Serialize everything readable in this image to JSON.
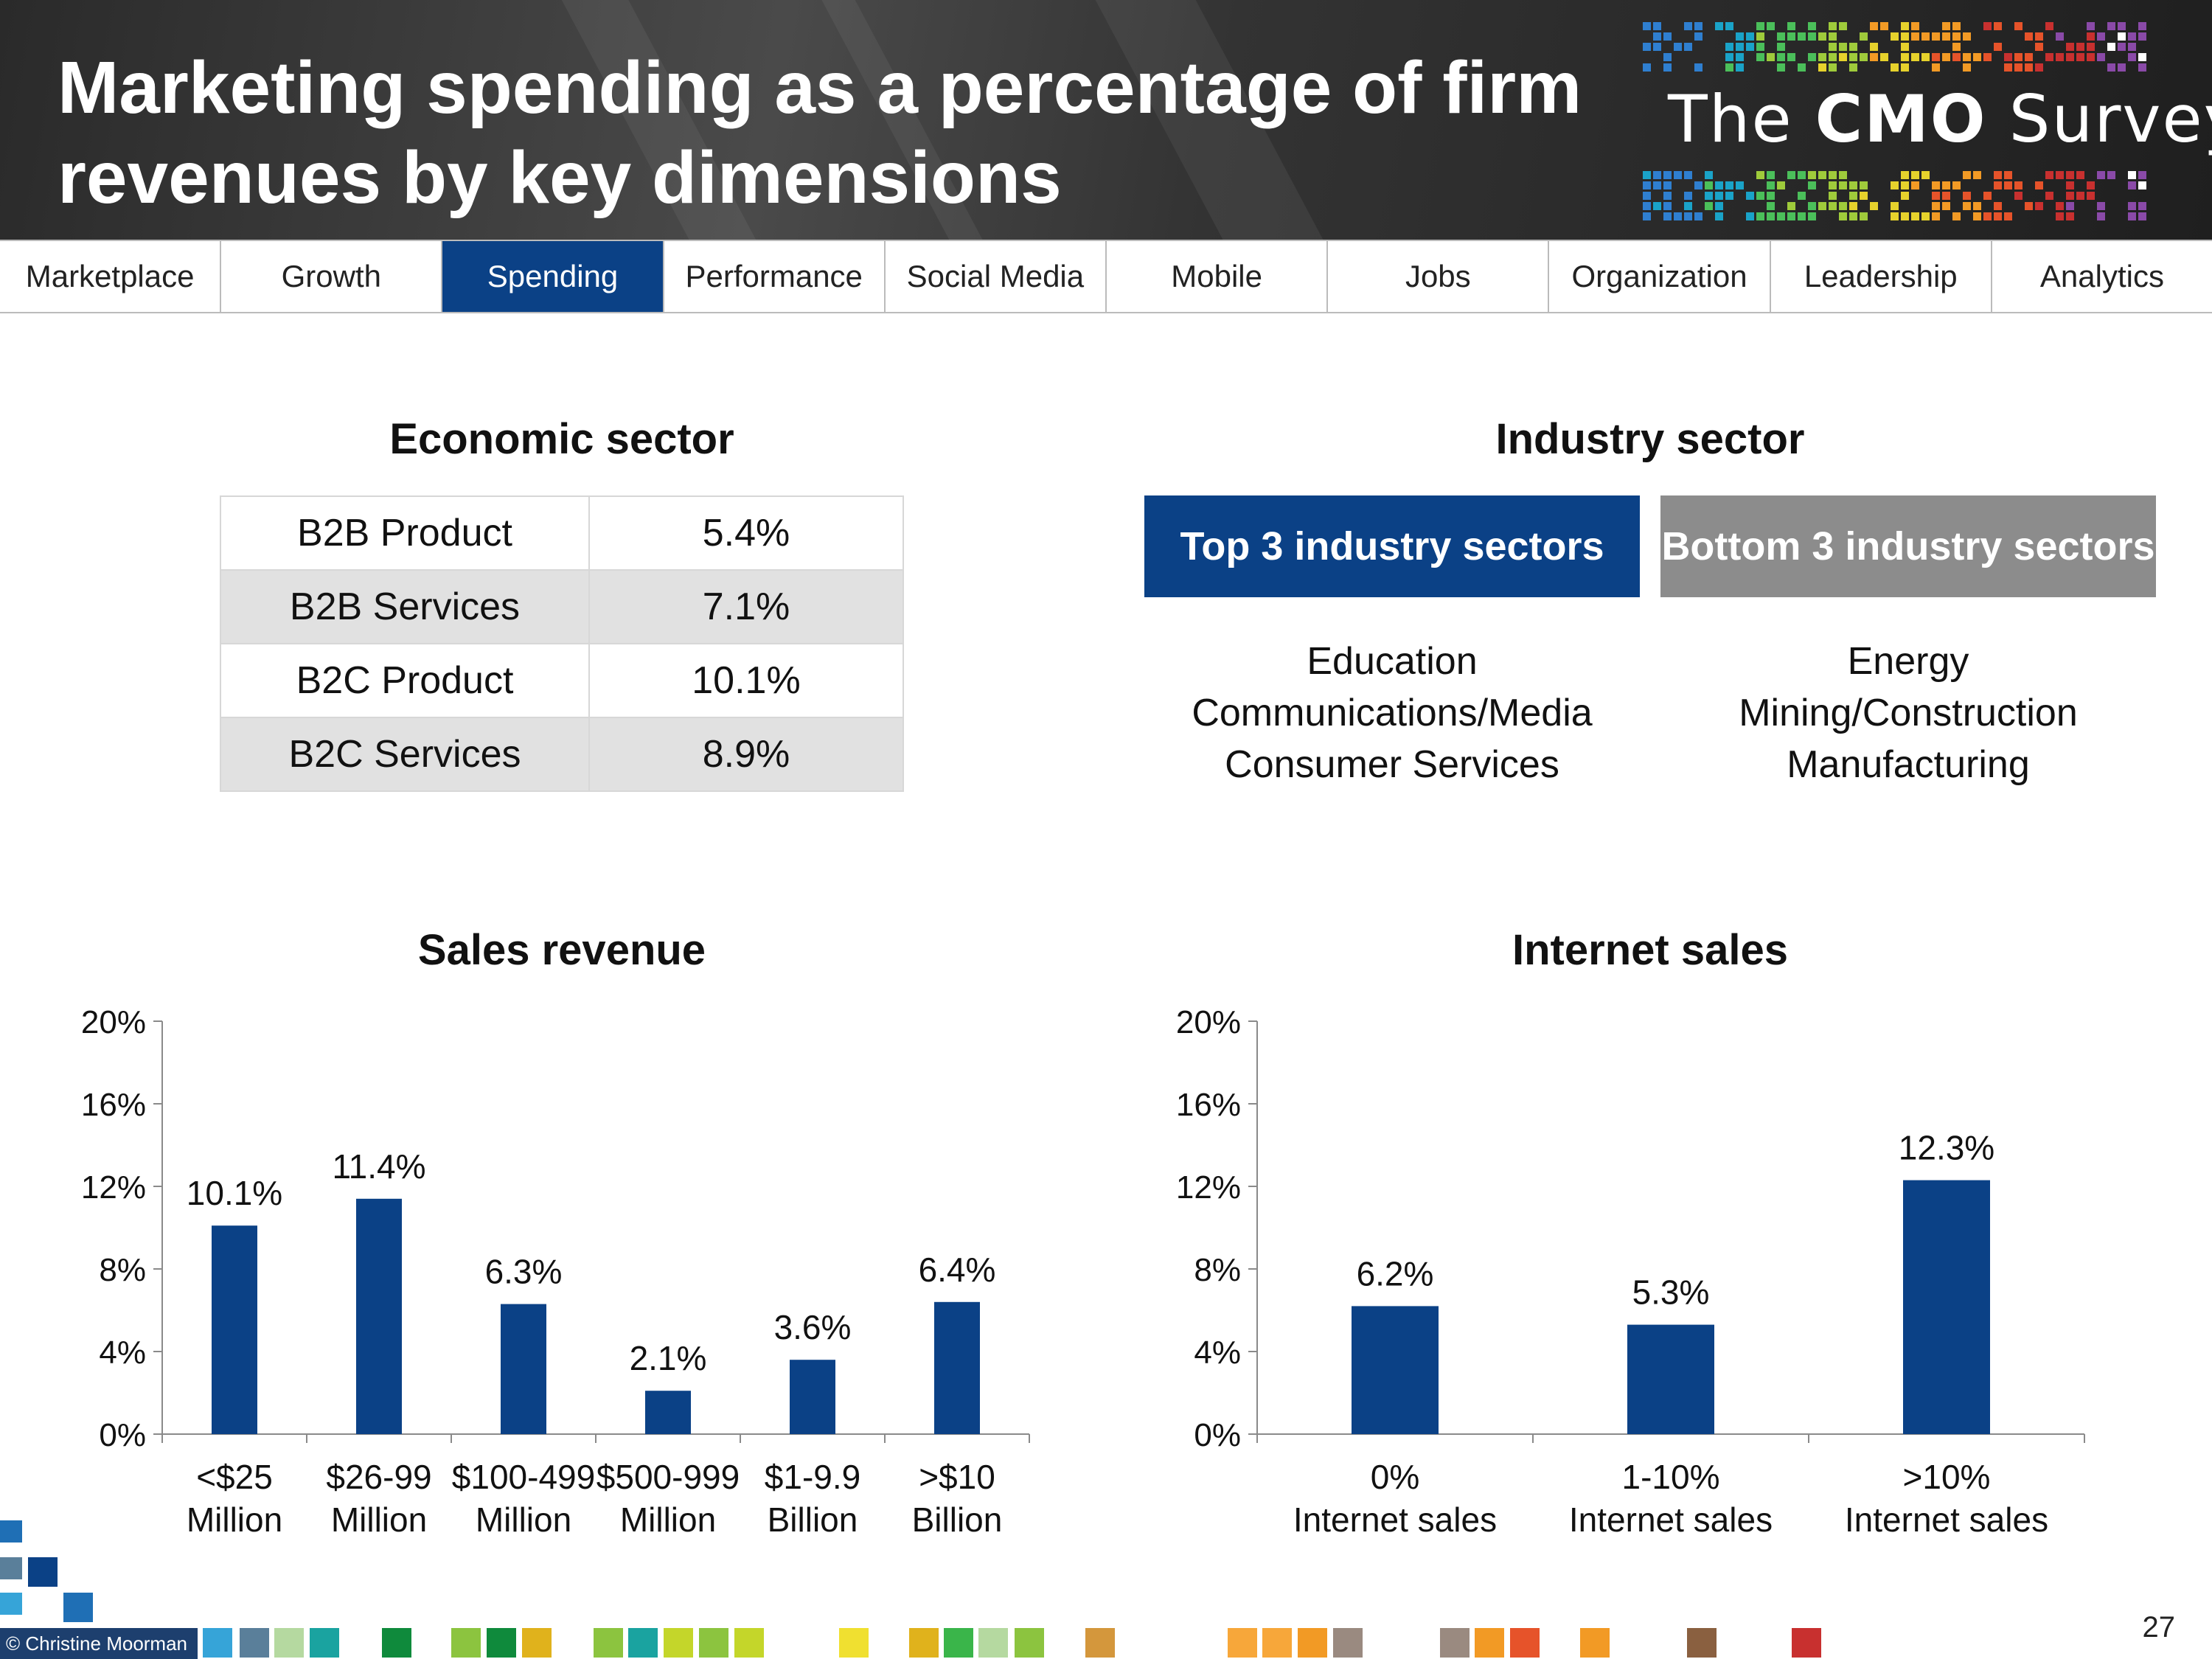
{
  "header": {
    "title": "Marketing spending as a percentage of firm revenues by key dimensions",
    "logo": {
      "prefix": "The",
      "brand": "CMO",
      "suffix": "Survey"
    }
  },
  "nav": {
    "items": [
      "Marketplace",
      "Growth",
      "Spending",
      "Performance",
      "Social Media",
      "Mobile",
      "Jobs",
      "Organization",
      "Leadership",
      "Analytics"
    ],
    "active": "Spending"
  },
  "economic_sector": {
    "title": "Economic sector",
    "rows": [
      {
        "label": "B2B Product",
        "value": "5.4%"
      },
      {
        "label": "B2B Services",
        "value": "7.1%"
      },
      {
        "label": "B2C Product",
        "value": "10.1%"
      },
      {
        "label": "B2C Services",
        "value": "8.9%"
      }
    ]
  },
  "industry_sector": {
    "title": "Industry sector",
    "top": {
      "label": "Top 3 industry sectors",
      "items": [
        "Education",
        "Communications/Media",
        "Consumer Services"
      ]
    },
    "bottom": {
      "label": "Bottom 3 industry sectors",
      "items": [
        "Energy",
        "Mining/Construction",
        "Manufacturing"
      ]
    },
    "colors": {
      "top": "#0b4186",
      "bottom": "#8c8c8c"
    }
  },
  "chart_data": [
    {
      "type": "bar",
      "title": "Sales revenue",
      "categories": [
        [
          "<$25",
          "Million"
        ],
        [
          "$26-99",
          "Million"
        ],
        [
          "$100-499",
          "Million"
        ],
        [
          "$500-999",
          "Million"
        ],
        [
          "$1-9.9",
          "Billion"
        ],
        [
          ">$10",
          "Billion"
        ]
      ],
      "values": [
        10.1,
        11.4,
        6.3,
        2.1,
        3.6,
        6.4
      ],
      "data_labels": [
        "10.1%",
        "11.4%",
        "6.3%",
        "2.1%",
        "3.6%",
        "6.4%"
      ],
      "ylim": [
        0,
        20
      ],
      "yticks": [
        "0%",
        "4%",
        "8%",
        "12%",
        "16%",
        "20%"
      ],
      "color": "#0b4186",
      "grid": false
    },
    {
      "type": "bar",
      "title": "Internet sales",
      "categories": [
        [
          "0%",
          "Internet sales"
        ],
        [
          "1-10%",
          "Internet sales"
        ],
        [
          ">10%",
          "Internet sales"
        ]
      ],
      "values": [
        6.2,
        5.3,
        12.3
      ],
      "data_labels": [
        "6.2%",
        "5.3%",
        "12.3%"
      ],
      "ylim": [
        0,
        20
      ],
      "yticks": [
        "0%",
        "4%",
        "8%",
        "12%",
        "16%",
        "20%"
      ],
      "color": "#0b4186",
      "grid": false
    }
  ],
  "footer": {
    "copyright": "© Christine Moorman",
    "page_number": "27"
  }
}
